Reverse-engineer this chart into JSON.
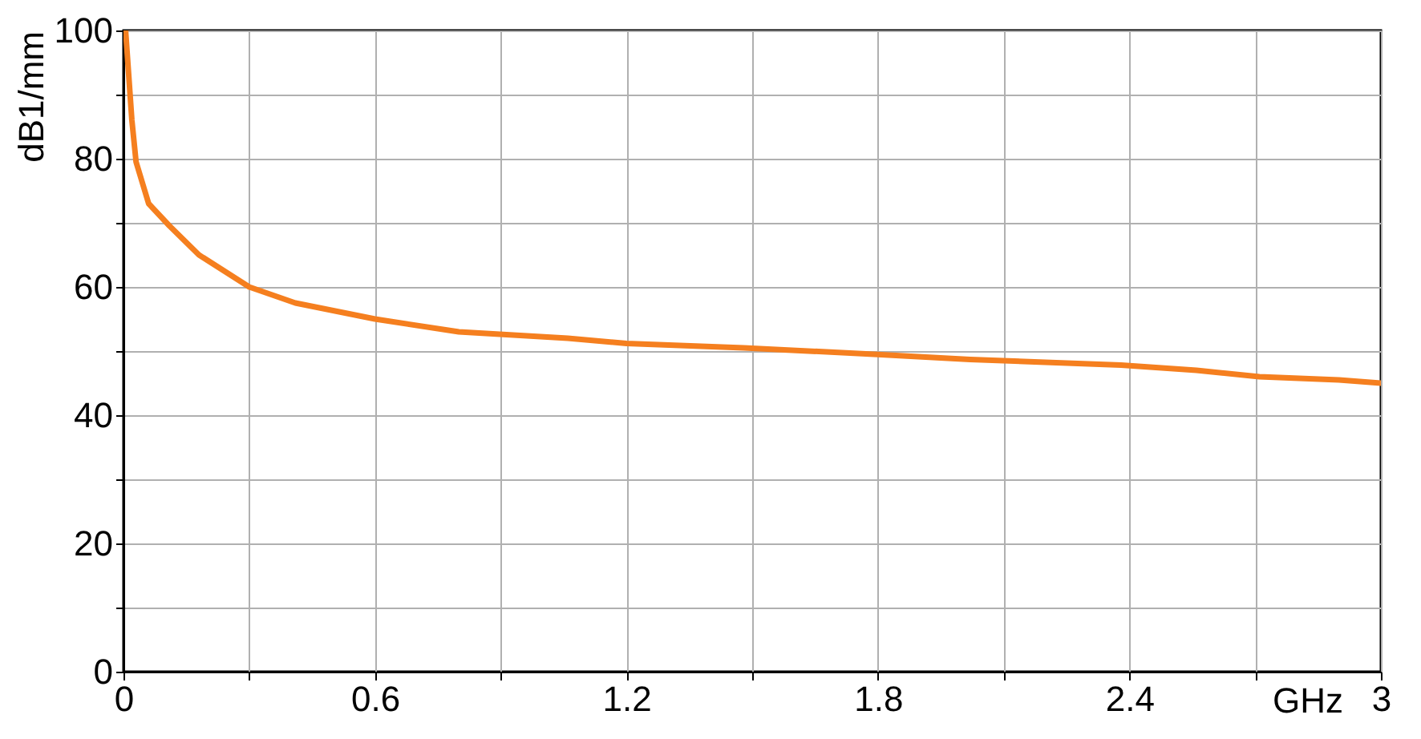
{
  "chart_data": {
    "type": "line",
    "xlabel": "GHz",
    "ylabel": "dB1/mm",
    "x": [
      0.005,
      0.02,
      0.03,
      0.06,
      0.11,
      0.18,
      0.3,
      0.41,
      0.6,
      0.8,
      1.06,
      1.2,
      1.48,
      1.79,
      2.02,
      2.38,
      2.56,
      2.71,
      2.9,
      3
    ],
    "series": [
      {
        "color": "#f57f1f",
        "values": [
          100,
          86,
          79.5,
          73,
          69.5,
          65,
          60,
          57.5,
          55,
          53,
          52,
          51.2,
          50.5,
          49.5,
          48.7,
          47.8,
          47,
          46,
          45.5,
          45
        ]
      }
    ],
    "xlim": [
      0,
      3
    ],
    "ylim": [
      0,
      100
    ],
    "xticks": [
      0,
      {
        "value": 0.3,
        "label": null
      },
      0.6,
      {
        "value": 0.9,
        "label": null
      },
      1.2,
      {
        "value": 1.5,
        "label": null
      },
      1.8,
      {
        "value": 2.1,
        "label": null
      },
      2.4,
      {
        "value": 2.7,
        "label": null
      },
      3
    ],
    "yticks": [
      0,
      {
        "value": 10,
        "label": null
      },
      20,
      {
        "value": 30,
        "label": null
      },
      40,
      {
        "value": 50,
        "label": null
      },
      60,
      {
        "value": 70,
        "label": null
      },
      80,
      {
        "value": 90,
        "label": null
      },
      100
    ],
    "grid": true,
    "legend": false,
    "marker": "none",
    "line_style": "solid"
  }
}
